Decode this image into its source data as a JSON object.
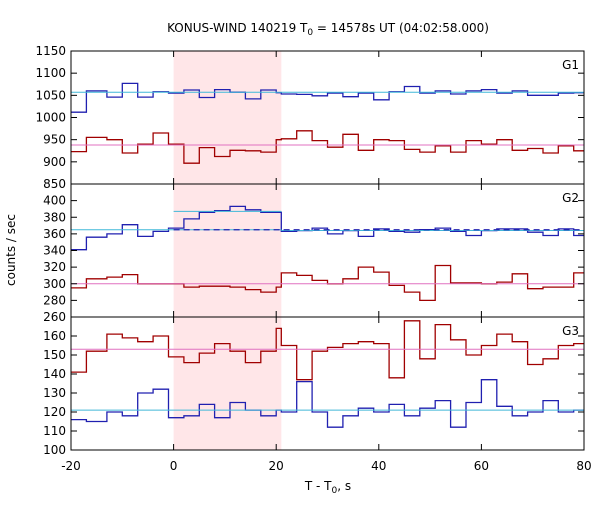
{
  "chart_data": {
    "type": "line",
    "title": "KONUS-WIND 140219 T",
    "title_sub": "0",
    "title_tail": " = 14578s UT (04:02:58.000)",
    "xlabel_main": "T - T",
    "xlabel_sub": "0",
    "xlabel_tail": ", s",
    "ylabel": "counts / sec",
    "xlim": [
      -20,
      80
    ],
    "xticks": [
      -20,
      0,
      20,
      40,
      60,
      80
    ],
    "shade": [
      0,
      21
    ],
    "colors": {
      "red": "#a00000",
      "blue": "#2020b0",
      "cyan": "#40b8d8",
      "pink": "#e070c0",
      "shade": "#ffe6e8"
    },
    "panels": [
      {
        "name": "G1",
        "ylim": [
          850,
          1150
        ],
        "yticks": [
          850,
          900,
          950,
          1000,
          1050,
          1100,
          1150
        ],
        "series": [
          {
            "role": "blue",
            "x": [
              -20,
              -17,
              -13,
              -10,
              -7,
              -4,
              -1,
              2,
              5,
              8,
              11,
              14,
              17,
              20,
              21,
              24,
              27,
              30,
              33,
              36,
              39,
              42,
              45,
              48,
              51,
              54,
              57,
              60,
              63,
              66,
              69,
              72,
              75,
              78
            ],
            "y": [
              1012,
              1060,
              1046,
              1077,
              1046,
              1058,
              1055,
              1062,
              1045,
              1063,
              1057,
              1042,
              1062,
              1056,
              1053,
              1052,
              1049,
              1055,
              1047,
              1055,
              1040,
              1058,
              1070,
              1055,
              1060,
              1053,
              1060,
              1063,
              1055,
              1060,
              1050,
              1050,
              1055,
              1056
            ]
          },
          {
            "role": "red",
            "x": [
              -20,
              -17,
              -13,
              -10,
              -7,
              -4,
              -1,
              2,
              5,
              8,
              11,
              14,
              17,
              20,
              21,
              24,
              27,
              30,
              33,
              36,
              39,
              42,
              45,
              48,
              51,
              54,
              57,
              60,
              63,
              66,
              69,
              72,
              75,
              78
            ],
            "y": [
              923,
              955,
              950,
              920,
              940,
              965,
              940,
              897,
              932,
              912,
              926,
              925,
              922,
              950,
              952,
              970,
              948,
              933,
              962,
              926,
              950,
              948,
              928,
              922,
              936,
              922,
              948,
              940,
              950,
              926,
              930,
              920,
              936,
              925
            ]
          },
          {
            "role": "cyan",
            "x": [
              -20,
              80
            ],
            "y": [
              1057,
              1057
            ]
          },
          {
            "role": "pink",
            "x": [
              -20,
              80
            ],
            "y": [
              938,
              938
            ]
          }
        ]
      },
      {
        "name": "G2",
        "ylim": [
          260,
          420
        ],
        "yticks": [
          260,
          280,
          300,
          320,
          340,
          360,
          380,
          400
        ],
        "series": [
          {
            "role": "blue",
            "x": [
              -20,
              -17,
              -13,
              -10,
              -7,
              -4,
              -1,
              2,
              5,
              8,
              11,
              14,
              17,
              20,
              21,
              24,
              27,
              30,
              33,
              36,
              39,
              42,
              45,
              48,
              51,
              54,
              57,
              60,
              63,
              66,
              69,
              72,
              75,
              78
            ],
            "y": [
              341,
              356,
              360,
              371,
              357,
              363,
              367,
              378,
              386,
              388,
              393,
              389,
              386,
              386,
              363,
              364,
              367,
              360,
              364,
              357,
              366,
              363,
              362,
              365,
              367,
              363,
              358,
              364,
              366,
              366,
              362,
              358,
              366,
              358
            ]
          },
          {
            "role": "red",
            "x": [
              -20,
              -17,
              -13,
              -10,
              -7,
              -4,
              -1,
              2,
              5,
              8,
              11,
              14,
              17,
              20,
              21,
              24,
              27,
              30,
              33,
              36,
              39,
              42,
              45,
              48,
              51,
              54,
              57,
              60,
              63,
              66,
              69,
              72,
              75,
              78
            ],
            "y": [
              295,
              306,
              308,
              311,
              300,
              300,
              300,
              296,
              297,
              297,
              296,
              293,
              290,
              296,
              313,
              310,
              304,
              300,
              306,
              320,
              314,
              298,
              290,
              280,
              322,
              301,
              301,
              300,
              302,
              312,
              294,
              296,
              296,
              313
            ]
          },
          {
            "role": "cyan",
            "x": [
              -20,
              21
            ],
            "y": [
              365,
              365
            ]
          },
          {
            "role": "cyan",
            "x": [
              0,
              21
            ],
            "y": [
              387,
              387
            ]
          },
          {
            "role": "cyan",
            "x": [
              21,
              80
            ],
            "y": [
              364,
              364
            ]
          },
          {
            "role": "pink",
            "x": [
              -20,
              80
            ],
            "y": [
              300,
              300
            ]
          }
        ],
        "dashed": {
          "x": [
            0,
            80
          ],
          "y": [
            365,
            365
          ]
        }
      },
      {
        "name": "G3",
        "ylim": [
          100,
          170
        ],
        "yticks": [
          100,
          110,
          120,
          130,
          140,
          150,
          160
        ],
        "series": [
          {
            "role": "red",
            "x": [
              -20,
              -17,
              -13,
              -10,
              -7,
              -4,
              -1,
              2,
              5,
              8,
              11,
              14,
              17,
              20,
              21,
              24,
              27,
              30,
              33,
              36,
              39,
              42,
              45,
              48,
              51,
              54,
              57,
              60,
              63,
              66,
              69,
              72,
              75,
              78
            ],
            "y": [
              141,
              152,
              161,
              159,
              157,
              160,
              149,
              146,
              151,
              156,
              152,
              146,
              152,
              164,
              155,
              137,
              152,
              154,
              156,
              157,
              156,
              138,
              168,
              148,
              166,
              158,
              150,
              155,
              161,
              157,
              145,
              148,
              155,
              156
            ]
          },
          {
            "role": "blue",
            "x": [
              -20,
              -17,
              -13,
              -10,
              -7,
              -4,
              -1,
              2,
              5,
              8,
              11,
              14,
              17,
              20,
              21,
              24,
              27,
              30,
              33,
              36,
              39,
              42,
              45,
              48,
              51,
              54,
              57,
              60,
              63,
              66,
              69,
              72,
              75,
              78
            ],
            "y": [
              116,
              115,
              120,
              118,
              130,
              132,
              117,
              118,
              124,
              117,
              125,
              121,
              118,
              121,
              120,
              136,
              120,
              112,
              118,
              122,
              120,
              124,
              118,
              122,
              126,
              112,
              125,
              137,
              123,
              118,
              120,
              126,
              120,
              121
            ]
          },
          {
            "role": "cyan",
            "x": [
              -20,
              80
            ],
            "y": [
              121,
              121
            ]
          },
          {
            "role": "pink",
            "x": [
              -20,
              80
            ],
            "y": [
              153,
              153
            ]
          }
        ]
      }
    ]
  }
}
